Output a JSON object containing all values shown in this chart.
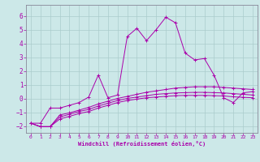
{
  "xlabel": "Windchill (Refroidissement éolien,°C)",
  "background_color": "#cce8e8",
  "line_color": "#aa00aa",
  "grid_color": "#aacccc",
  "x_min": -0.5,
  "x_max": 23.5,
  "y_min": -2.5,
  "y_max": 6.8,
  "yticks": [
    -2,
    -1,
    0,
    1,
    2,
    3,
    4,
    5,
    6
  ],
  "xticks": [
    0,
    1,
    2,
    3,
    4,
    5,
    6,
    7,
    8,
    9,
    10,
    11,
    12,
    13,
    14,
    15,
    16,
    17,
    18,
    19,
    20,
    21,
    22,
    23
  ],
  "line1_x": [
    0,
    1,
    2,
    3,
    4,
    5,
    6,
    7,
    8,
    9,
    10,
    11,
    12,
    13,
    14,
    15,
    16,
    17,
    18,
    19,
    20,
    21,
    22,
    23
  ],
  "line1_y": [
    -1.8,
    -1.8,
    -0.7,
    -0.7,
    -0.5,
    -0.3,
    0.1,
    1.7,
    0.05,
    0.25,
    4.5,
    5.1,
    4.2,
    5.0,
    5.9,
    5.5,
    3.3,
    2.8,
    2.9,
    1.7,
    0.05,
    -0.3,
    0.4,
    0.5
  ],
  "line2_x": [
    0,
    1,
    2,
    3,
    4,
    5,
    6,
    7,
    8,
    9,
    10,
    11,
    12,
    13,
    14,
    15,
    16,
    17,
    18,
    19,
    20,
    21,
    22,
    23
  ],
  "line2_y": [
    -1.8,
    -2.05,
    -2.05,
    -1.2,
    -1.05,
    -0.85,
    -0.65,
    -0.4,
    -0.2,
    0.0,
    0.15,
    0.3,
    0.45,
    0.55,
    0.65,
    0.75,
    0.8,
    0.85,
    0.85,
    0.85,
    0.8,
    0.75,
    0.7,
    0.65
  ],
  "line3_x": [
    0,
    1,
    2,
    3,
    4,
    5,
    6,
    7,
    8,
    9,
    10,
    11,
    12,
    13,
    14,
    15,
    16,
    17,
    18,
    19,
    20,
    21,
    22,
    23
  ],
  "line3_y": [
    -1.8,
    -2.05,
    -2.05,
    -1.35,
    -1.15,
    -0.95,
    -0.8,
    -0.55,
    -0.35,
    -0.15,
    0.0,
    0.1,
    0.2,
    0.3,
    0.35,
    0.4,
    0.42,
    0.44,
    0.44,
    0.42,
    0.4,
    0.35,
    0.3,
    0.25
  ],
  "line4_x": [
    0,
    1,
    2,
    3,
    4,
    5,
    6,
    7,
    8,
    9,
    10,
    11,
    12,
    13,
    14,
    15,
    16,
    17,
    18,
    19,
    20,
    21,
    22,
    23
  ],
  "line4_y": [
    -1.8,
    -2.05,
    -2.05,
    -1.5,
    -1.3,
    -1.1,
    -0.95,
    -0.7,
    -0.5,
    -0.3,
    -0.15,
    -0.05,
    0.05,
    0.1,
    0.15,
    0.2,
    0.22,
    0.22,
    0.22,
    0.2,
    0.18,
    0.12,
    0.08,
    0.05
  ]
}
